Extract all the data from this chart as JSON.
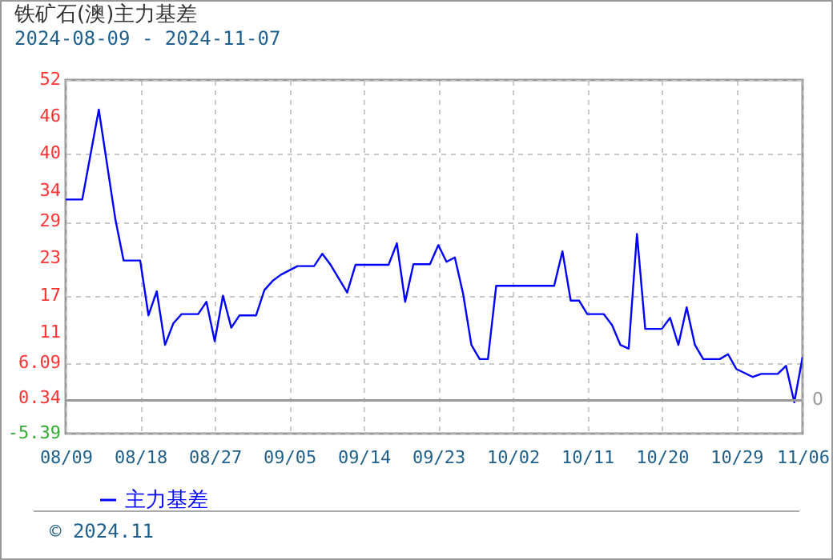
{
  "chart_data": {
    "type": "line",
    "title": "铁矿石(澳)主力基差",
    "subtitle": "2024-08-09 - 2024-11-07",
    "x": [
      "2024-08-09",
      "2024-08-11",
      "2024-08-13",
      "2024-08-15",
      "2024-08-16",
      "2024-08-18",
      "2024-08-19",
      "2024-08-20",
      "2024-08-21",
      "2024-08-22",
      "2024-08-23",
      "2024-08-25",
      "2024-08-26",
      "2024-08-27",
      "2024-08-28",
      "2024-08-29",
      "2024-08-30",
      "2024-09-01",
      "2024-09-02",
      "2024-09-03",
      "2024-09-04",
      "2024-09-06",
      "2024-09-08",
      "2024-09-09",
      "2024-09-10",
      "2024-09-12",
      "2024-09-13",
      "2024-09-17",
      "2024-09-18",
      "2024-09-19",
      "2024-09-20",
      "2024-09-22",
      "2024-09-23",
      "2024-09-24",
      "2024-09-25",
      "2024-09-26",
      "2024-09-27",
      "2024-09-28",
      "2024-09-29",
      "2024-09-30",
      "2024-10-07",
      "2024-10-08",
      "2024-10-09",
      "2024-10-10",
      "2024-10-11",
      "2024-10-13",
      "2024-10-14",
      "2024-10-15",
      "2024-10-16",
      "2024-10-17",
      "2024-10-18",
      "2024-10-20",
      "2024-10-21",
      "2024-10-22",
      "2024-10-23",
      "2024-10-24",
      "2024-10-25",
      "2024-10-27",
      "2024-10-28",
      "2024-10-29",
      "2024-10-31",
      "2024-11-01",
      "2024-11-03",
      "2024-11-04",
      "2024-11-05",
      "2024-11-06"
    ],
    "series": [
      {
        "name": "主力基差",
        "color": "#0000ff",
        "values": [
          32.6,
          32.6,
          47.2,
          29.4,
          22.7,
          22.7,
          13.8,
          17.7,
          9.0,
          12.5,
          14.0,
          14.0,
          16.0,
          9.6,
          17.0,
          11.8,
          13.8,
          13.8,
          17.9,
          19.4,
          20.4,
          21.8,
          21.8,
          23.8,
          22.0,
          17.5,
          22.0,
          22.0,
          25.5,
          16.0,
          22.1,
          22.1,
          25.2,
          22.5,
          23.2,
          17.3,
          9.0,
          6.7,
          6.7,
          18.6,
          18.6,
          24.2,
          16.2,
          16.2,
          14.0,
          14.0,
          12.2,
          9.0,
          8.4,
          27.0,
          11.6,
          11.6,
          13.4,
          9.0,
          15.1,
          9.0,
          6.7,
          6.7,
          7.5,
          5.1,
          3.8,
          4.3,
          4.3,
          5.6,
          -0.3,
          7.0
        ]
      }
    ],
    "xlim": [
      "2024-08-09",
      "2024-11-06"
    ],
    "xticks": [
      {
        "value": "2024-08-09",
        "label": "08/09"
      },
      {
        "value": "2024-08-18",
        "label": "08/18"
      },
      {
        "value": "2024-08-27",
        "label": "08/27"
      },
      {
        "value": "2024-09-05",
        "label": "09/05"
      },
      {
        "value": "2024-09-14",
        "label": "09/14"
      },
      {
        "value": "2024-09-23",
        "label": "09/23"
      },
      {
        "value": "2024-10-02",
        "label": "10/02"
      },
      {
        "value": "2024-10-11",
        "label": "10/11"
      },
      {
        "value": "2024-10-20",
        "label": "10/20"
      },
      {
        "value": "2024-10-29",
        "label": "10/29"
      },
      {
        "value": "2024-11-06",
        "label": "11/06"
      }
    ],
    "ylim": [
      -5.39,
      52
    ],
    "yticks": [
      -5.39,
      0.34,
      6.09,
      11,
      17,
      23,
      29,
      34,
      40,
      46,
      52
    ],
    "ref_lines": [
      {
        "axis": "y",
        "value": 0,
        "label": "0",
        "color": "#999999",
        "line_style": "solid"
      }
    ],
    "grid": true,
    "legend": "bottom",
    "marker": "none",
    "line_style": "solid",
    "annotations": [
      "© 2024.11"
    ]
  }
}
